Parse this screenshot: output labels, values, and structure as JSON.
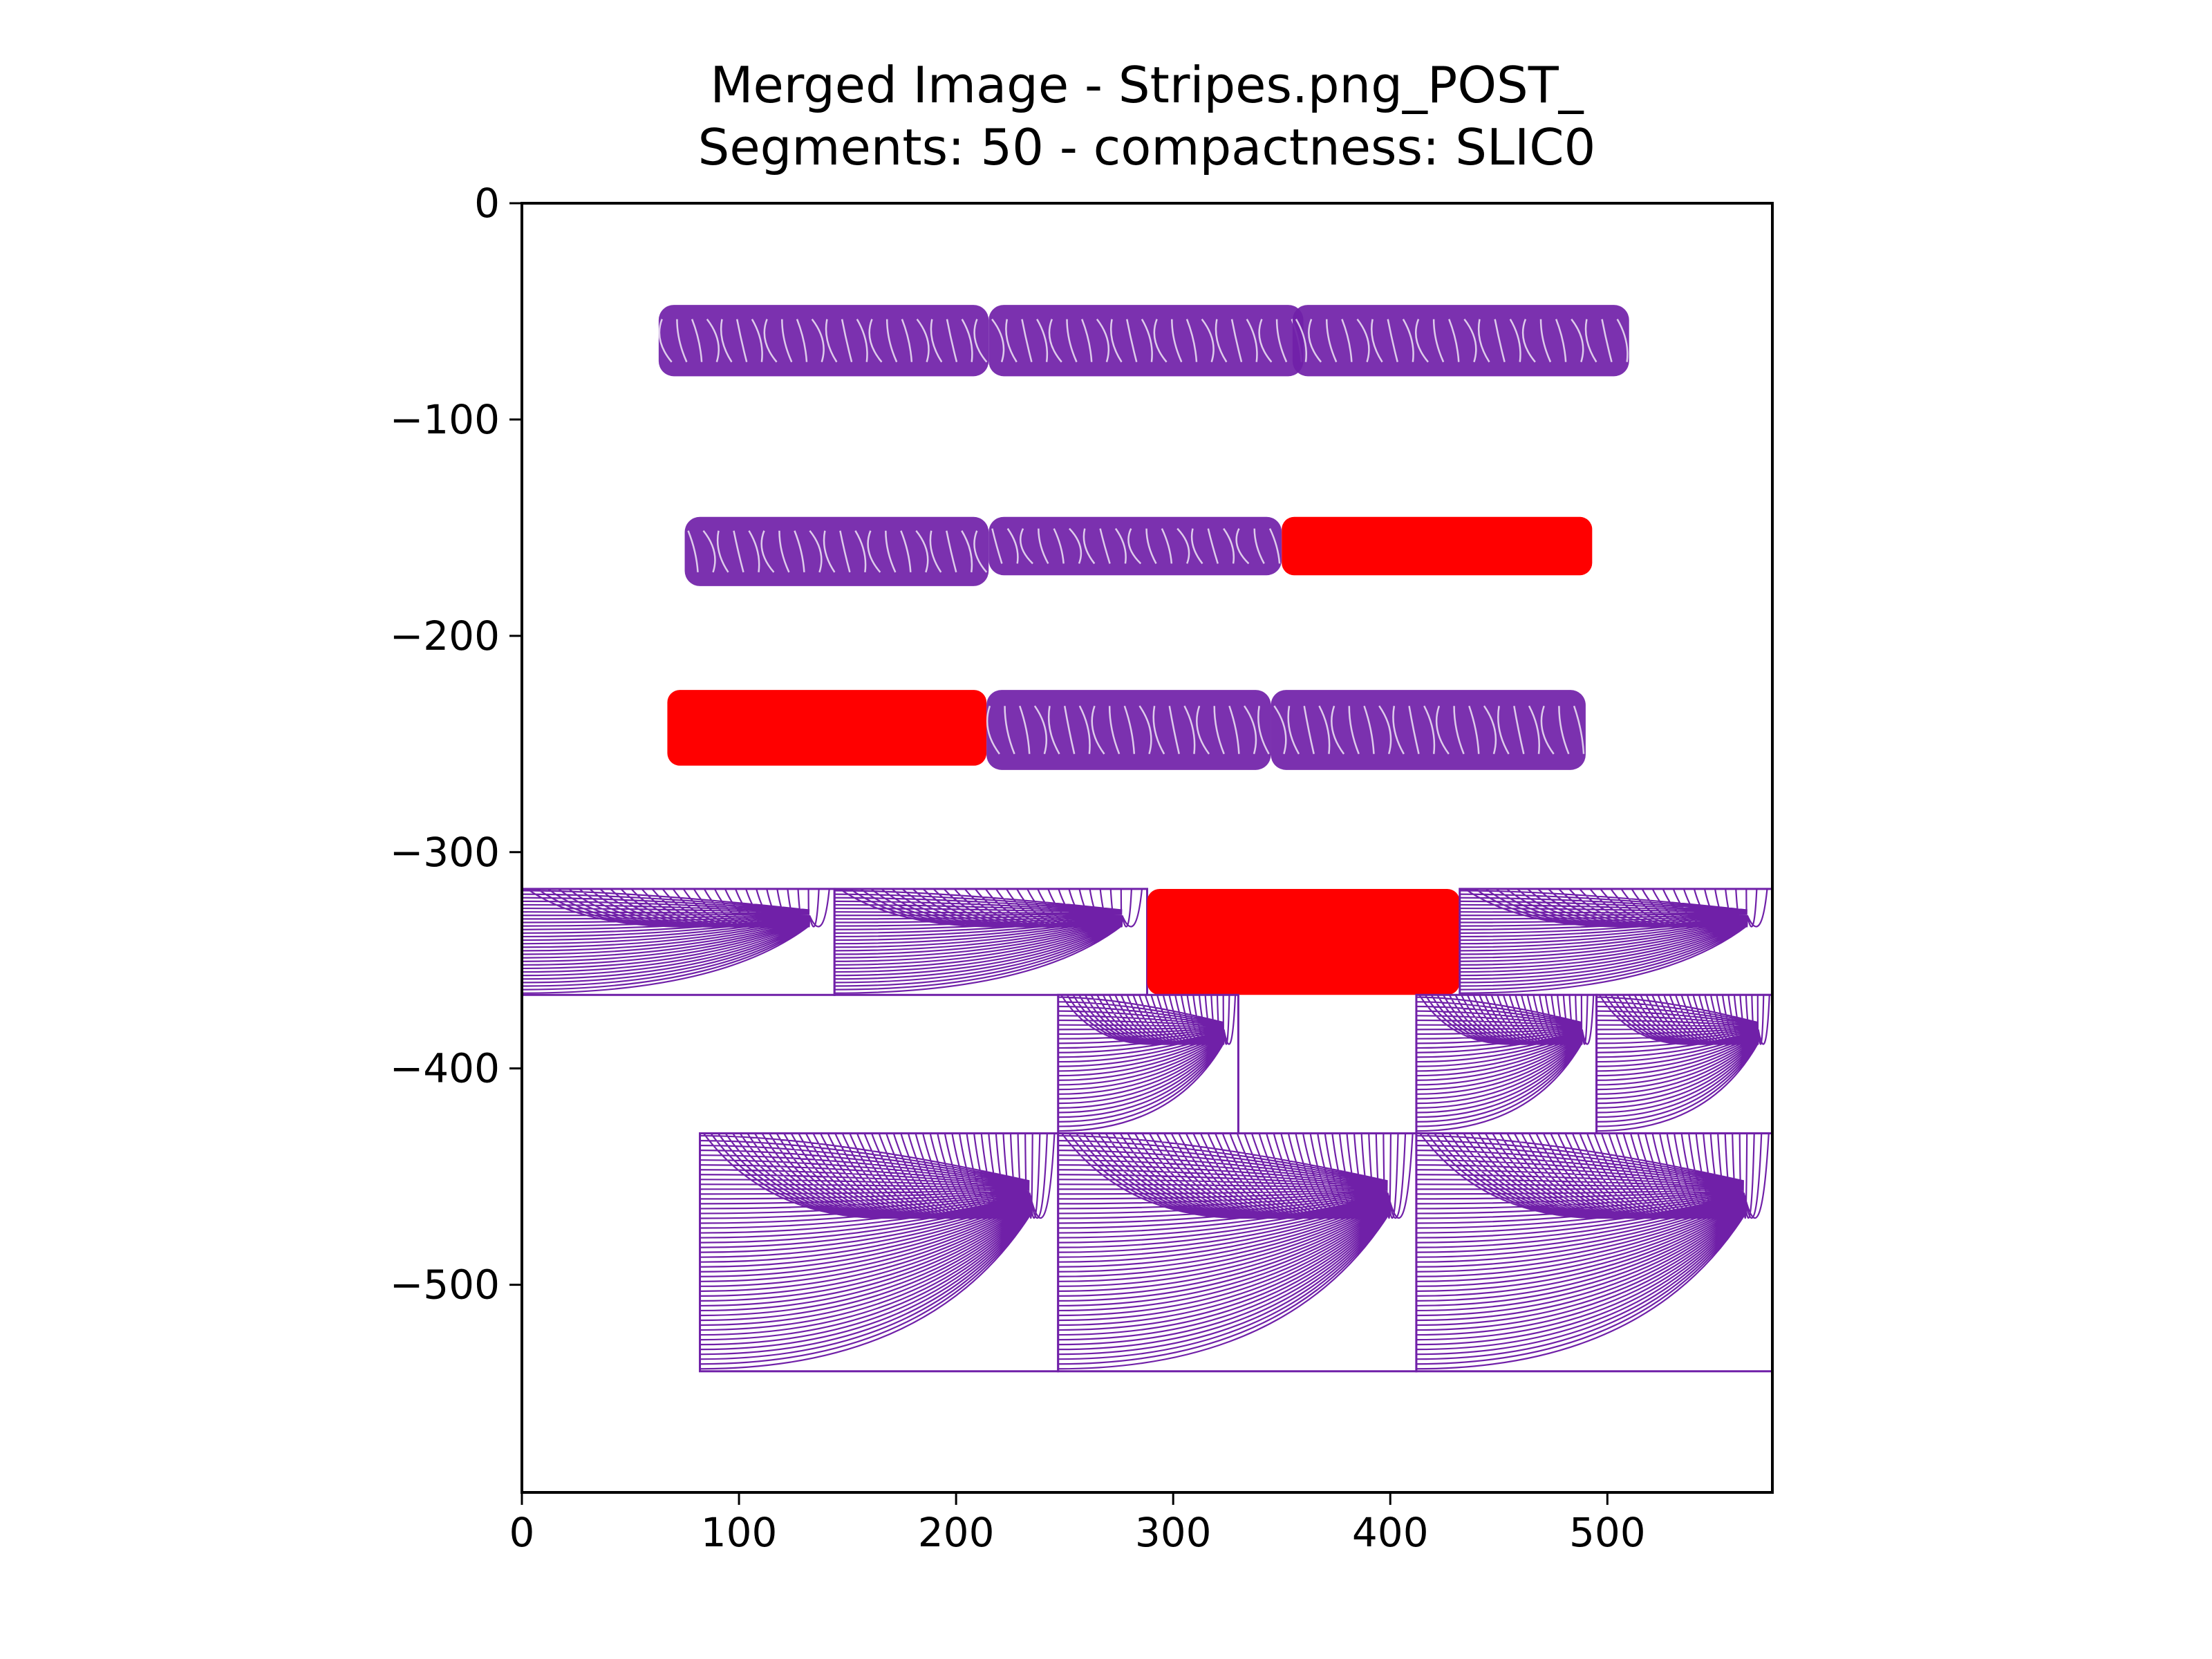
{
  "chart_data": {
    "type": "streamplot",
    "title": "Merged Image - Stripes.png_POST_",
    "subtitle": "Segments: 50 - compactness: SLIC0",
    "xlabel": "",
    "ylabel": "",
    "xlim": [
      0,
      576
    ],
    "ylim": [
      -596,
      0
    ],
    "x_ticks": [
      0,
      100,
      200,
      300,
      400,
      500
    ],
    "y_ticks": [
      0,
      -100,
      -200,
      -300,
      -400,
      -500
    ],
    "x_tick_labels": [
      "0",
      "100",
      "200",
      "300",
      "400",
      "500"
    ],
    "y_tick_labels": [
      "0",
      "−100",
      "−200",
      "−300",
      "−400",
      "−500"
    ],
    "grid": false,
    "legend": "none",
    "colors": {
      "merged": "#7020a8",
      "unmerged": "#ff0000"
    },
    "segments": [
      {
        "row": 1,
        "x": [
          63,
          215
        ],
        "y": [
          -47,
          -80
        ],
        "color": "merged"
      },
      {
        "row": 1,
        "x": [
          215,
          360
        ],
        "y": [
          -47,
          -80
        ],
        "color": "merged"
      },
      {
        "row": 1,
        "x": [
          355,
          510
        ],
        "y": [
          -47,
          -80
        ],
        "color": "merged"
      },
      {
        "row": 2,
        "x": [
          75,
          215
        ],
        "y": [
          -145,
          -177
        ],
        "color": "merged"
      },
      {
        "row": 2,
        "x": [
          215,
          350
        ],
        "y": [
          -145,
          -172
        ],
        "color": "merged"
      },
      {
        "row": 2,
        "x": [
          350,
          493
        ],
        "y": [
          -145,
          -172
        ],
        "color": "unmerged"
      },
      {
        "row": 3,
        "x": [
          67,
          214
        ],
        "y": [
          -225,
          -260
        ],
        "color": "unmerged"
      },
      {
        "row": 3,
        "x": [
          214,
          345
        ],
        "y": [
          -225,
          -262
        ],
        "color": "merged"
      },
      {
        "row": 3,
        "x": [
          345,
          490
        ],
        "y": [
          -225,
          -262
        ],
        "color": "merged"
      },
      {
        "row": 4,
        "x": [
          0,
          144
        ],
        "y": [
          -317,
          -366
        ],
        "color": "merged"
      },
      {
        "row": 4,
        "x": [
          144,
          288
        ],
        "y": [
          -317,
          -366
        ],
        "color": "merged"
      },
      {
        "row": 4,
        "x": [
          288,
          432
        ],
        "y": [
          -317,
          -366
        ],
        "color": "unmerged"
      },
      {
        "row": 4,
        "x": [
          432,
          576
        ],
        "y": [
          -317,
          -366
        ],
        "color": "merged"
      },
      {
        "row": 5,
        "x": [
          247,
          330
        ],
        "y": [
          -366,
          -430
        ],
        "color": "merged"
      },
      {
        "row": 5,
        "x": [
          412,
          495
        ],
        "y": [
          -366,
          -430
        ],
        "color": "merged"
      },
      {
        "row": 5,
        "x": [
          495,
          576
        ],
        "y": [
          -366,
          -430
        ],
        "color": "merged"
      },
      {
        "row": 6,
        "x": [
          82,
          247
        ],
        "y": [
          -430,
          -540
        ],
        "color": "merged"
      },
      {
        "row": 6,
        "x": [
          247,
          412
        ],
        "y": [
          -430,
          -540
        ],
        "color": "merged"
      },
      {
        "row": 6,
        "x": [
          412,
          576
        ],
        "y": [
          -430,
          -540
        ],
        "color": "merged"
      }
    ]
  }
}
